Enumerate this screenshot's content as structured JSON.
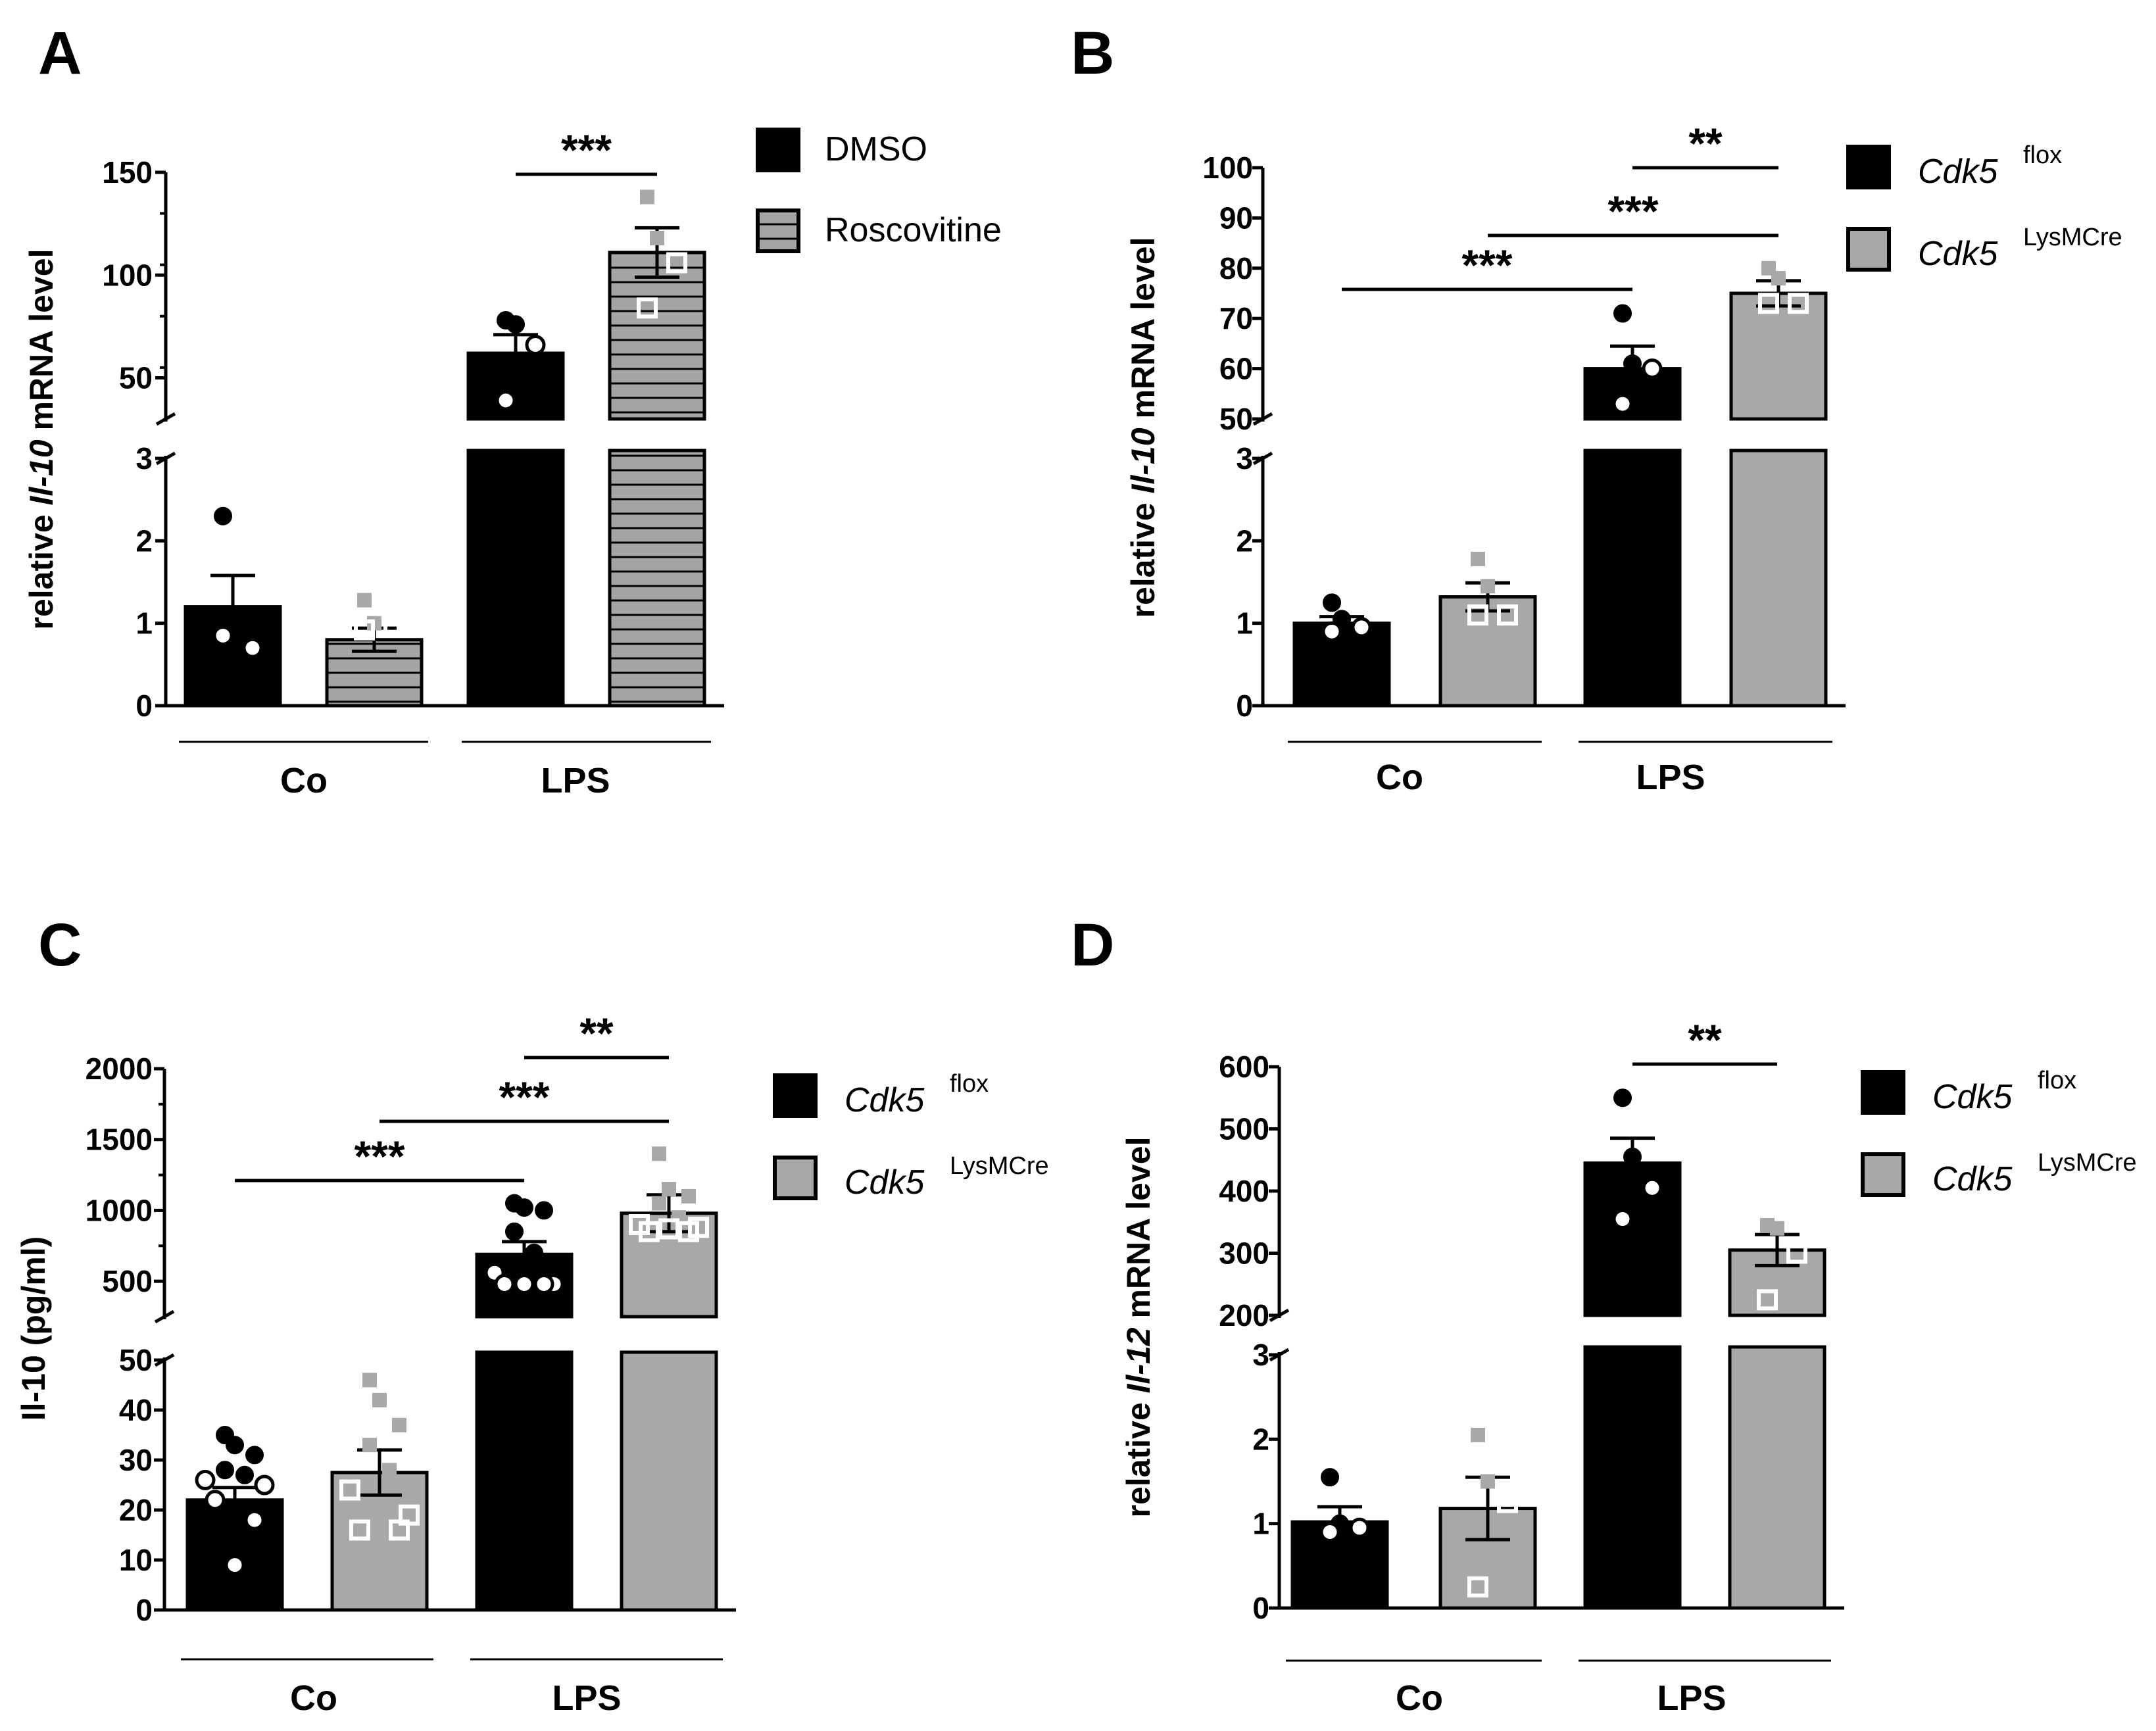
{
  "figure": {
    "panels": [
      "A",
      "B",
      "C",
      "D"
    ]
  },
  "colors": {
    "black": "#000000",
    "gray": "#a8a8aa",
    "hatch_fill": "#a4a4a6",
    "point_gray": "#a8a8aa"
  },
  "chart_data": [
    {
      "panel": "A",
      "type": "bar",
      "ylabel_pre": "relative ",
      "ylabel_gene": "Il-10",
      "ylabel_post": " mRNA level",
      "groups": [
        "Co",
        "LPS"
      ],
      "legend": [
        {
          "label": "DMSO",
          "style": "black"
        },
        {
          "label": "Roscovitine",
          "style": "hatched"
        }
      ],
      "axis_lower": {
        "range": [
          0,
          3
        ],
        "ticks": [
          "0",
          "1",
          "2",
          "3"
        ]
      },
      "axis_upper": {
        "range": [
          30,
          150
        ],
        "ticks": [
          "50",
          "100",
          "150"
        ]
      },
      "bars": [
        {
          "group": "Co",
          "series": "DMSO",
          "mean": 1.2,
          "sem": 0.38,
          "points": [
            2.3,
            0.7,
            0.7,
            0.85
          ]
        },
        {
          "group": "Co",
          "series": "Roscovitine",
          "mean": 0.8,
          "sem": 0.14,
          "points": [
            1.28,
            1.0,
            0.95,
            0.92
          ]
        },
        {
          "group": "LPS",
          "series": "DMSO",
          "mean": 62,
          "sem": 9,
          "points": [
            78,
            76,
            66,
            39
          ]
        },
        {
          "group": "LPS",
          "series": "Roscovitine",
          "mean": 111,
          "sem": 12,
          "points": [
            138,
            118,
            106,
            84
          ]
        }
      ],
      "significance": [
        {
          "from": 2,
          "to": 3,
          "label": "***"
        }
      ]
    },
    {
      "panel": "B",
      "type": "bar",
      "ylabel_pre": "relative ",
      "ylabel_gene": "Il-10",
      "ylabel_post": " mRNA level",
      "groups": [
        "Co",
        "LPS"
      ],
      "legend": [
        {
          "label": "Cdk5",
          "sup": "flox",
          "style": "black"
        },
        {
          "label": "Cdk5",
          "sup": "LysMCre",
          "style": "gray"
        }
      ],
      "axis_lower": {
        "range": [
          0,
          3
        ],
        "ticks": [
          "0",
          "1",
          "2",
          "3"
        ]
      },
      "axis_upper": {
        "range": [
          50,
          100
        ],
        "ticks": [
          "50",
          "60",
          "70",
          "80",
          "90",
          "100"
        ]
      },
      "bars": [
        {
          "group": "Co",
          "series": "flox",
          "mean": 1.0,
          "sem": 0.08,
          "points": [
            1.25,
            1.05,
            0.95,
            0.9
          ]
        },
        {
          "group": "Co",
          "series": "LysMCre",
          "mean": 1.32,
          "sem": 0.17,
          "points": [
            1.78,
            1.45,
            1.1,
            1.1
          ]
        },
        {
          "group": "LPS",
          "series": "flox",
          "mean": 60,
          "sem": 4.5,
          "points": [
            71,
            61,
            60,
            53
          ]
        },
        {
          "group": "LPS",
          "series": "LysMCre",
          "mean": 75,
          "sem": 2.5,
          "points": [
            80,
            78,
            73,
            73
          ]
        }
      ],
      "significance": [
        {
          "from": 2,
          "to": 3,
          "label": "**"
        },
        {
          "from": 1,
          "to": 3,
          "label": "***"
        },
        {
          "from": 0,
          "to": 2,
          "label": "***"
        }
      ]
    },
    {
      "panel": "C",
      "type": "bar",
      "ylabel_pre": "Il-10 (pg/ml)",
      "ylabel_gene": "",
      "ylabel_post": "",
      "groups": [
        "Co",
        "LPS"
      ],
      "legend": [
        {
          "label": "Cdk5",
          "sup": "flox",
          "style": "black"
        },
        {
          "label": "Cdk5",
          "sup": "LysMCre",
          "style": "gray"
        }
      ],
      "axis_lower": {
        "range": [
          0,
          50
        ],
        "ticks": [
          "0",
          "10",
          "20",
          "30",
          "40",
          "50"
        ]
      },
      "axis_upper": {
        "range": [
          250,
          2000
        ],
        "ticks": [
          "500",
          "1000",
          "1500",
          "2000"
        ]
      },
      "bars": [
        {
          "group": "Co",
          "series": "flox",
          "mean": 22,
          "sem": 2.5,
          "points": [
            35,
            33,
            31,
            28,
            27,
            26,
            25,
            22,
            18,
            9
          ]
        },
        {
          "group": "Co",
          "series": "LysMCre",
          "mean": 27.5,
          "sem": 4.5,
          "points": [
            46,
            42,
            37,
            33,
            28,
            24,
            19,
            16,
            16
          ]
        },
        {
          "group": "LPS",
          "series": "flox",
          "mean": 690,
          "sem": 90,
          "points": [
            1050,
            1020,
            1000,
            850,
            700,
            560,
            480,
            480,
            480,
            480
          ]
        },
        {
          "group": "LPS",
          "series": "LysMCre",
          "mean": 980,
          "sem": 130,
          "points": [
            1400,
            1150,
            1100,
            1050,
            950,
            900,
            880,
            850,
            850,
            870
          ]
        }
      ],
      "significance": [
        {
          "from": 2,
          "to": 3,
          "label": "**"
        },
        {
          "from": 1,
          "to": 3,
          "label": "***"
        },
        {
          "from": 0,
          "to": 2,
          "label": "***"
        }
      ]
    },
    {
      "panel": "D",
      "type": "bar",
      "ylabel_pre": "relative ",
      "ylabel_gene": "Il-12",
      "ylabel_post": " mRNA level",
      "groups": [
        "Co",
        "LPS"
      ],
      "legend": [
        {
          "label": "Cdk5",
          "sup": "flox",
          "style": "black"
        },
        {
          "label": "Cdk5",
          "sup": "LysMCre",
          "style": "gray"
        }
      ],
      "axis_lower": {
        "range": [
          0,
          3
        ],
        "ticks": [
          "0",
          "1",
          "2",
          "3"
        ]
      },
      "axis_upper": {
        "range": [
          200,
          600
        ],
        "ticks": [
          "200",
          "300",
          "400",
          "500",
          "600"
        ]
      },
      "bars": [
        {
          "group": "Co",
          "series": "flox",
          "mean": 1.02,
          "sem": 0.18,
          "points": [
            1.55,
            1.0,
            0.95,
            0.9
          ]
        },
        {
          "group": "Co",
          "series": "LysMCre",
          "mean": 1.18,
          "sem": 0.37,
          "points": [
            2.05,
            1.5,
            1.25,
            0.25
          ]
        },
        {
          "group": "LPS",
          "series": "flox",
          "mean": 445,
          "sem": 40,
          "points": [
            550,
            455,
            405,
            355
          ]
        },
        {
          "group": "LPS",
          "series": "LysMCre",
          "mean": 305,
          "sem": 25,
          "points": [
            345,
            340,
            300,
            225
          ]
        }
      ],
      "significance": [
        {
          "from": 2,
          "to": 3,
          "label": "**"
        }
      ]
    }
  ]
}
